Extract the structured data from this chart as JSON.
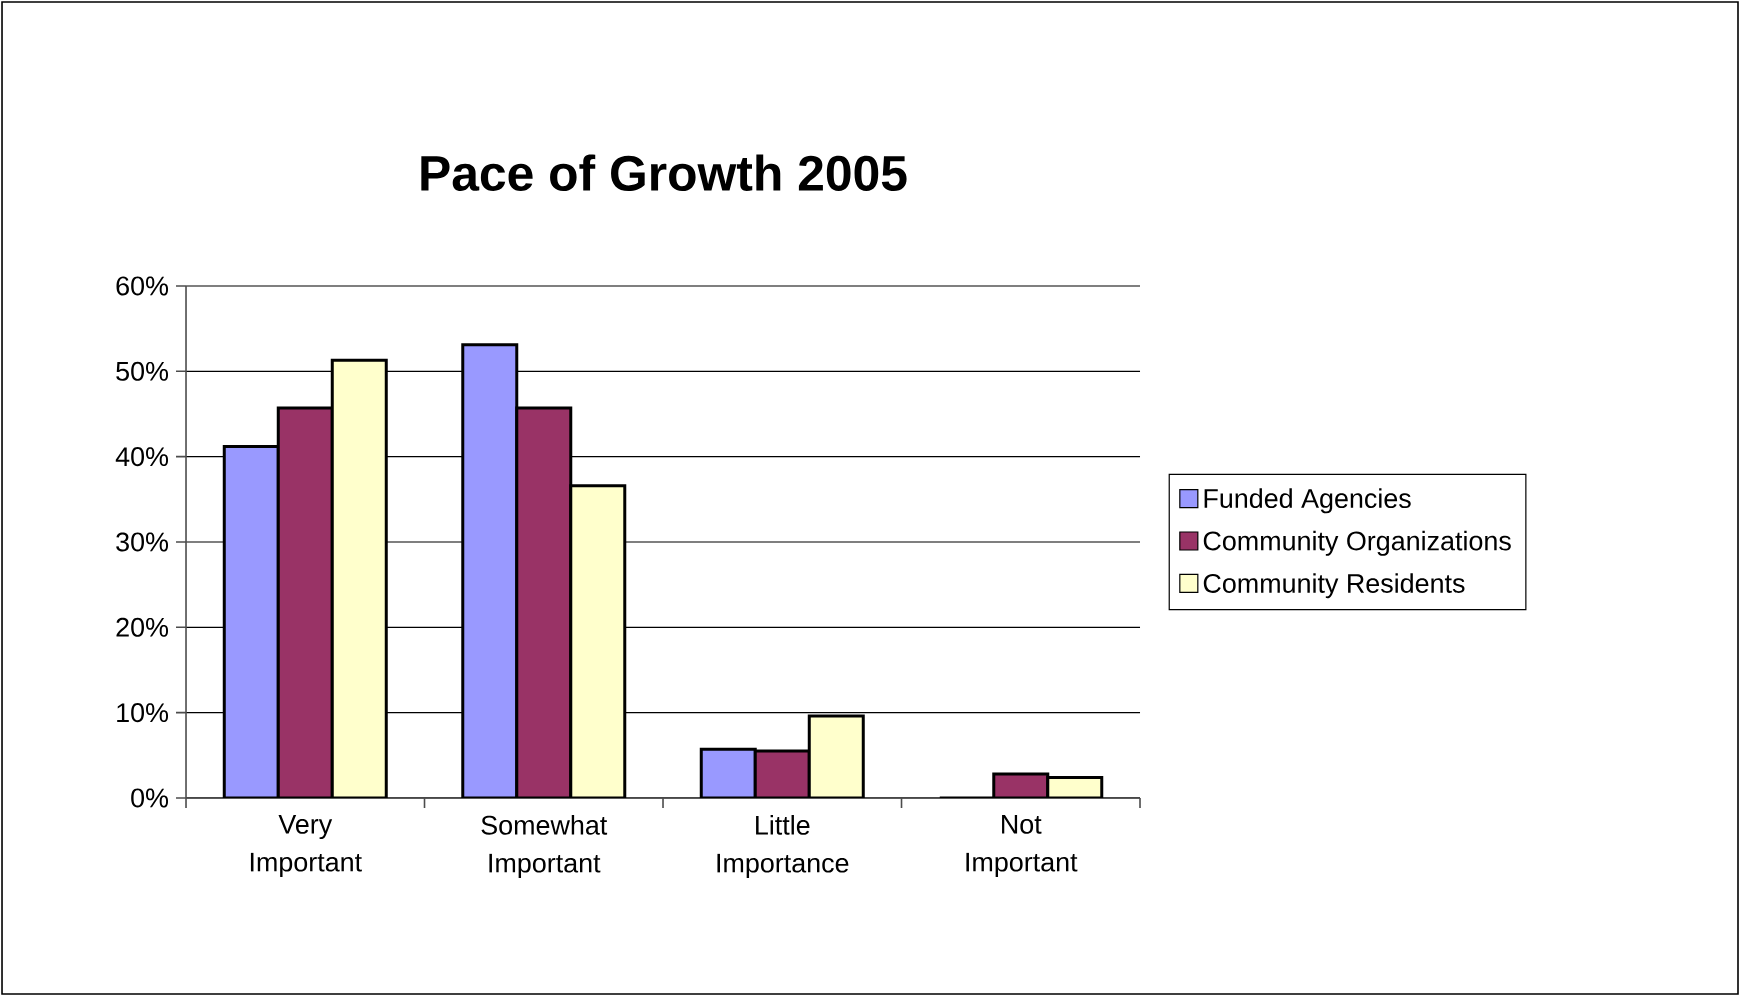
{
  "chart_data": {
    "type": "bar",
    "title": "Pace of Growth 2005",
    "categories": [
      "Very Important",
      "Somewhat Important",
      "Little Importance",
      "Not Important"
    ],
    "series": [
      {
        "name": "Funded Agencies",
        "color": "#9999ff",
        "values": [
          41.2,
          53.1,
          5.7,
          0
        ]
      },
      {
        "name": "Community Organizations",
        "color": "#993366",
        "values": [
          45.7,
          45.7,
          5.5,
          2.8
        ]
      },
      {
        "name": "Community Residents",
        "color": "#ffffcc",
        "values": [
          51.3,
          36.6,
          9.6,
          2.4
        ]
      }
    ],
    "ylim": [
      0,
      60
    ],
    "yticks": [
      {
        "value": 0,
        "label": "0%"
      },
      {
        "value": 10,
        "label": "10%"
      },
      {
        "value": 20,
        "label": "20%"
      },
      {
        "value": 30,
        "label": "30%"
      },
      {
        "value": 40,
        "label": "40%"
      },
      {
        "value": 50,
        "label": "50%"
      },
      {
        "value": 60,
        "label": "60%"
      }
    ],
    "grid": "y",
    "legend": "right"
  }
}
